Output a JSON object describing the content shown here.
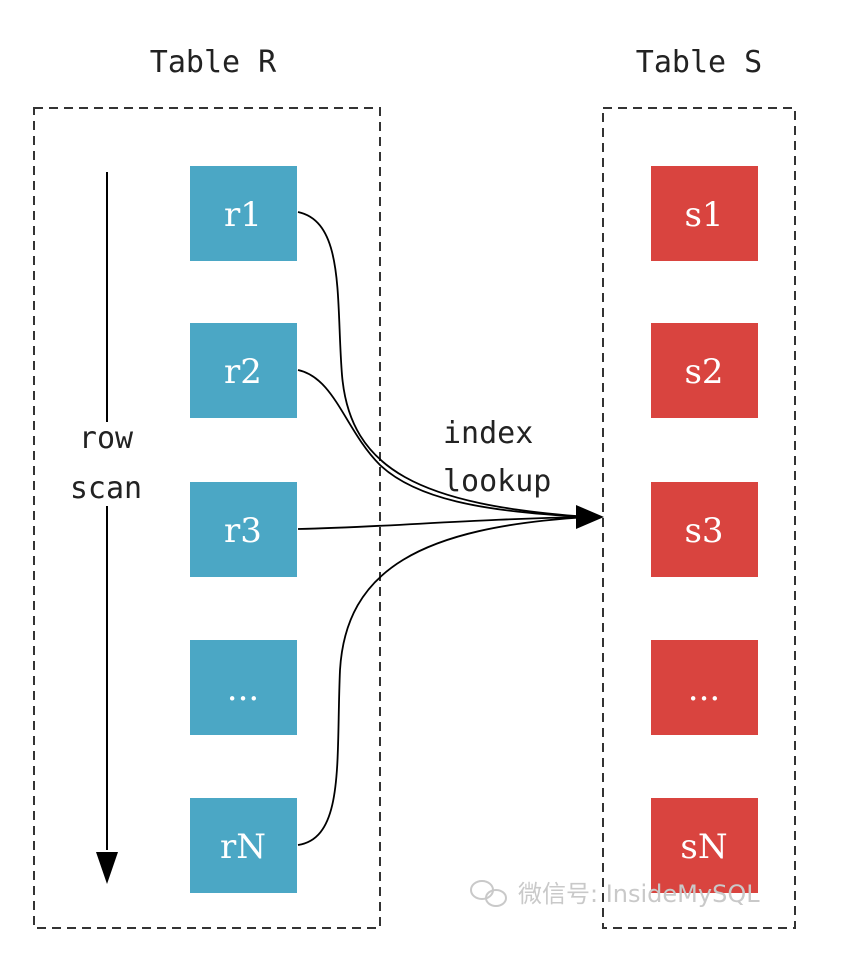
{
  "table_r": {
    "title": "Table R",
    "rows": [
      "r1",
      "r2",
      "r3",
      "...",
      "rN"
    ],
    "color": "#4ba7c5"
  },
  "table_s": {
    "title": "Table S",
    "rows": [
      "s1",
      "s2",
      "s3",
      "...",
      "sN"
    ],
    "color": "#d9443f"
  },
  "scan_label": {
    "line1": "row",
    "line2": "scan"
  },
  "lookup_label": {
    "line1": "index",
    "line2": "lookup"
  },
  "watermark": {
    "text": "微信号: InsideMySQL",
    "icon": "wechat-icon"
  },
  "colors": {
    "border": "#333333",
    "arrow": "#000000",
    "watermark": "#c9c9c9"
  }
}
